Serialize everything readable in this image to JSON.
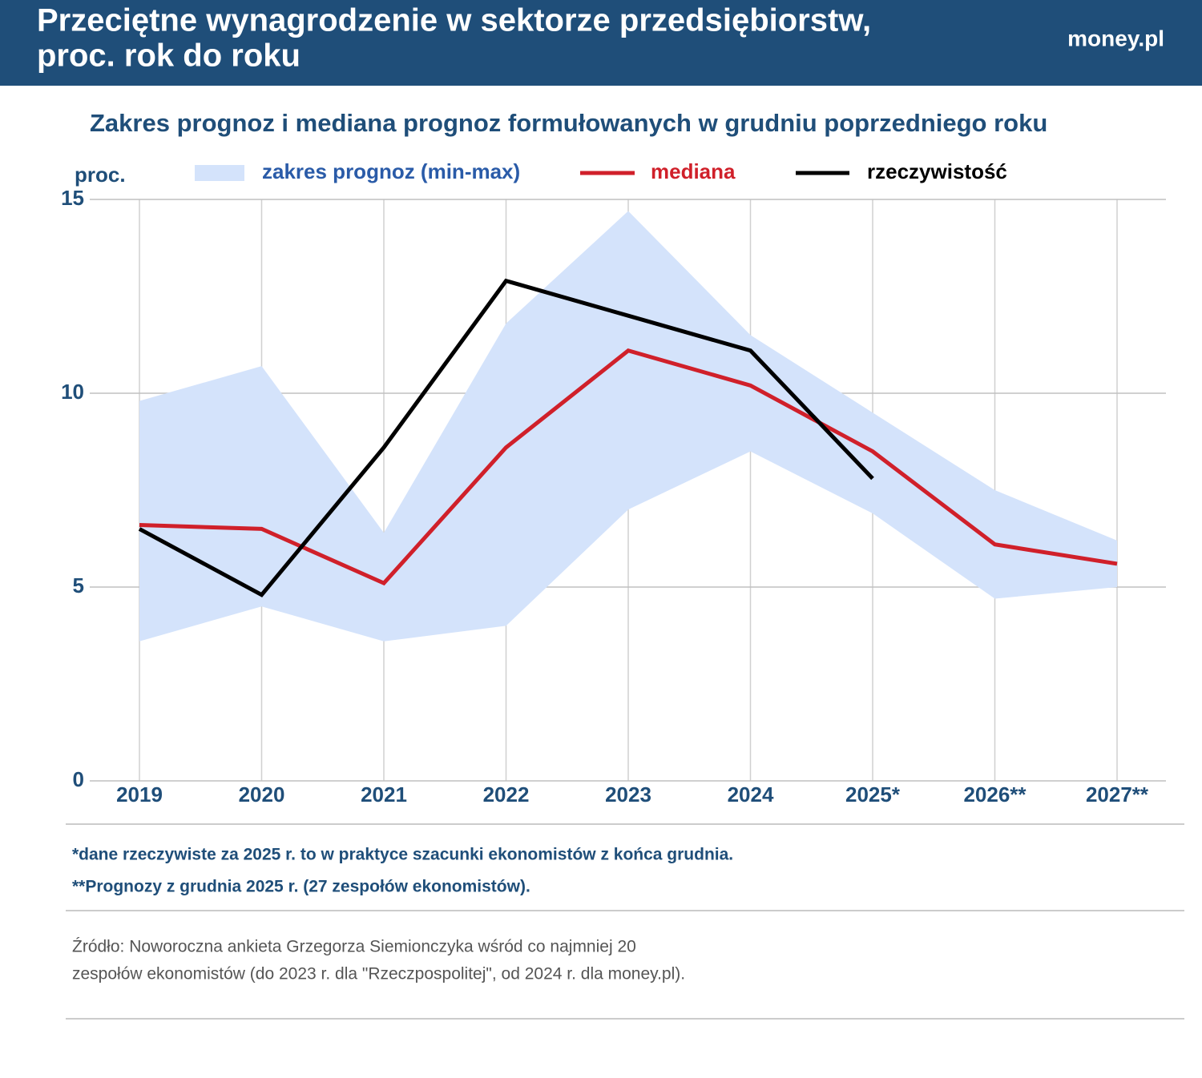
{
  "chart_data": {
    "type": "line",
    "title_lines": [
      "Przeciętne wynagrodzenie w sektorze przedsiębiorstw,",
      "proc. rok do roku"
    ],
    "brand": "money.pl",
    "subtitle": "Zakres prognoz i mediana prognoz formułowanych w grudniu poprzedniego roku",
    "ylabel": "proc.",
    "categories": [
      "2019",
      "2020",
      "2021",
      "2022",
      "2023",
      "2024",
      "2025*",
      "2026**",
      "2027**"
    ],
    "range": {
      "name": "zakres prognoz (min-max)",
      "color": "#d4e3fb",
      "high": [
        9.8,
        10.7,
        6.4,
        11.8,
        14.7,
        11.5,
        9.5,
        7.5,
        6.2
      ],
      "low": [
        3.6,
        4.5,
        3.6,
        4.0,
        7.0,
        8.5,
        6.9,
        4.7,
        5.0
      ]
    },
    "series": [
      {
        "name": "mediana",
        "color": "#d0202a",
        "values": [
          6.6,
          6.5,
          5.1,
          8.6,
          11.1,
          10.2,
          8.5,
          6.1,
          5.6
        ]
      },
      {
        "name": "rzeczywistość",
        "color": "#000000",
        "values": [
          6.5,
          4.8,
          8.6,
          12.9,
          12.0,
          11.1,
          7.8,
          null,
          null
        ]
      }
    ],
    "ylim": [
      0,
      15
    ],
    "yticks": [
      0,
      5,
      10,
      15
    ],
    "grid": true,
    "notes": [
      "*dane rzeczywiste za 2025 r. to w praktyce szacunki ekonomistów z końca grudnia.",
      "**Prognozy z grudnia 2025 r. (27 zespołów ekonomistów)."
    ],
    "source_lines": [
      "Źródło: Noworoczna ankieta Grzegorza Siemionczyka wśród co najmniej 20",
      "zespołów ekonomistów (do  2023 r. dla \"Rzeczpospolitej\", od 2024 r. dla money.pl)."
    ]
  }
}
